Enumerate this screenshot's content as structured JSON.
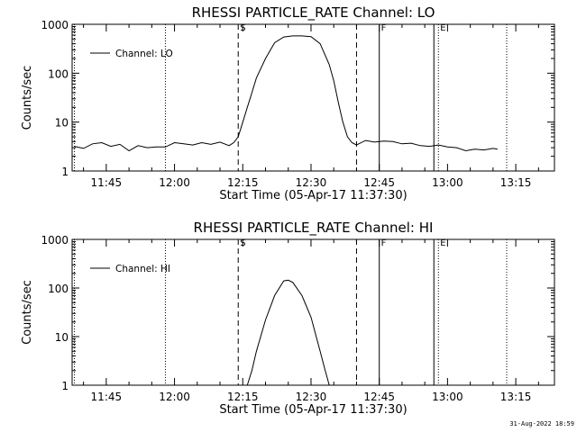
{
  "chart_data": [
    {
      "type": "line",
      "title": "RHESSI PARTICLE_RATE Channel: LO",
      "xlabel": "Start Time (05-Apr-17 11:37:30)",
      "ylabel": "Counts/sec",
      "y_scale": "log",
      "ylim": [
        1,
        1000
      ],
      "y_ticks": [
        1,
        10,
        100,
        1000
      ],
      "y_tick_labels": [
        "1",
        "10",
        "100",
        "1000"
      ],
      "x_tick_labels": [
        "11:45",
        "12:00",
        "12:15",
        "12:30",
        "12:45",
        "13:00",
        "13:15"
      ],
      "legend_label": "Channel: LO",
      "legend_position": "top-left",
      "series": [
        {
          "name": "Channel: LO",
          "x": [
            "11:38",
            "11:40",
            "11:42",
            "11:44",
            "11:46",
            "11:48",
            "11:50",
            "11:52",
            "11:54",
            "11:56",
            "11:58",
            "12:00",
            "12:02",
            "12:04",
            "12:06",
            "12:08",
            "12:10",
            "12:12",
            "12:13",
            "12:14",
            "12:15",
            "12:16",
            "12:17",
            "12:18",
            "12:20",
            "12:22",
            "12:24",
            "12:26",
            "12:28",
            "12:30",
            "12:32",
            "12:34",
            "12:35",
            "12:36",
            "12:37",
            "12:38",
            "12:39",
            "12:40",
            "12:42",
            "12:44",
            "12:46",
            "12:48",
            "12:50",
            "12:52",
            "12:54",
            "12:56",
            "12:58",
            "13:00",
            "13:02",
            "13:04",
            "13:06",
            "13:08",
            "13:10",
            "13:11"
          ],
          "y": [
            3.2,
            2.9,
            3.6,
            3.8,
            3.2,
            3.5,
            2.6,
            3.3,
            3.0,
            3.1,
            3.1,
            3.8,
            3.6,
            3.4,
            3.8,
            3.5,
            3.9,
            3.3,
            3.8,
            5,
            10,
            20,
            40,
            80,
            200,
            420,
            550,
            580,
            580,
            560,
            400,
            150,
            70,
            25,
            10,
            5,
            3.8,
            3.4,
            4.2,
            3.9,
            4.1,
            4.0,
            3.6,
            3.7,
            3.3,
            3.2,
            3.4,
            3.1,
            3.0,
            2.6,
            2.8,
            2.7,
            2.9,
            2.8
          ]
        }
      ],
      "markers": [
        {
          "label": "",
          "time": "11:38",
          "style": "dotted"
        },
        {
          "label": "",
          "time": "11:58",
          "style": "dotted"
        },
        {
          "label": "S",
          "time": "12:14",
          "style": "dashed"
        },
        {
          "label": "",
          "time": "12:40",
          "style": "dashed"
        },
        {
          "label": "F",
          "time": "12:45",
          "style": "solid"
        },
        {
          "label": "",
          "time": "12:57",
          "style": "solid"
        },
        {
          "label": "E",
          "time": "12:58",
          "style": "dotted"
        },
        {
          "label": "",
          "time": "13:13",
          "style": "dotted"
        }
      ]
    },
    {
      "type": "line",
      "title": "RHESSI PARTICLE_RATE Channel: HI",
      "xlabel": "Start Time (05-Apr-17 11:37:30)",
      "ylabel": "Counts/sec",
      "y_scale": "log",
      "ylim": [
        1,
        1000
      ],
      "y_ticks": [
        1,
        10,
        100,
        1000
      ],
      "y_tick_labels": [
        "1",
        "10",
        "100",
        "1000"
      ],
      "x_tick_labels": [
        "11:45",
        "12:00",
        "12:15",
        "12:30",
        "12:45",
        "13:00",
        "13:15"
      ],
      "legend_label": "Channel: HI",
      "legend_position": "top-left",
      "series": [
        {
          "name": "Channel: HI",
          "x": [
            "12:16",
            "12:17",
            "12:18",
            "12:20",
            "12:22",
            "12:24",
            "12:25",
            "12:26",
            "12:28",
            "12:30",
            "12:32",
            "12:33",
            "12:34"
          ],
          "y": [
            1.0,
            2.0,
            5.0,
            22,
            70,
            140,
            145,
            130,
            70,
            25,
            5,
            2.2,
            1.0
          ]
        }
      ],
      "markers": [
        {
          "label": "",
          "time": "11:38",
          "style": "dotted"
        },
        {
          "label": "",
          "time": "11:58",
          "style": "dotted"
        },
        {
          "label": "S",
          "time": "12:14",
          "style": "dashed"
        },
        {
          "label": "",
          "time": "12:40",
          "style": "dashed"
        },
        {
          "label": "F",
          "time": "12:45",
          "style": "solid"
        },
        {
          "label": "",
          "time": "12:57",
          "style": "solid"
        },
        {
          "label": "E",
          "time": "12:58",
          "style": "dotted"
        },
        {
          "label": "",
          "time": "13:13",
          "style": "dotted"
        }
      ]
    }
  ],
  "footer": {
    "timestamp": "31-Aug-2022 18:59"
  }
}
